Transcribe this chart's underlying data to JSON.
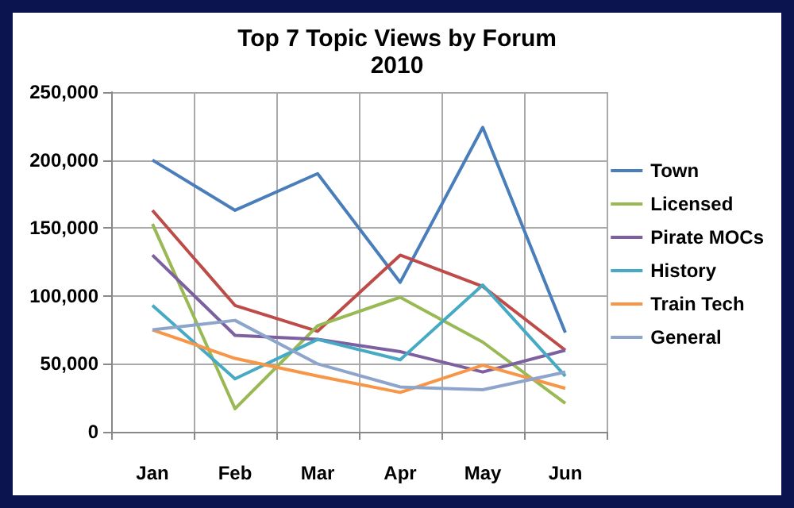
{
  "chart_data": {
    "type": "line",
    "title": "Top 7 Topic Views by Forum",
    "subtitle": "2010",
    "categories": [
      "Jan",
      "Feb",
      "Mar",
      "Apr",
      "May",
      "Jun"
    ],
    "series": [
      {
        "name": "Town",
        "color": "#4a7ebb",
        "values": [
          200000,
          163000,
          190000,
          110000,
          224000,
          73000
        ]
      },
      {
        "color": "#be4b48",
        "values": [
          163000,
          93000,
          74000,
          130000,
          107000,
          60000
        ]
      },
      {
        "name": "Licensed",
        "color": "#98b954",
        "values": [
          153000,
          17000,
          78000,
          99000,
          66000,
          21000
        ]
      },
      {
        "name": "Pirate MOCs",
        "color": "#7d60a0",
        "values": [
          130000,
          71000,
          68000,
          59000,
          44000,
          60000
        ]
      },
      {
        "name": "History",
        "color": "#46aac5",
        "values": [
          93000,
          39000,
          68000,
          53000,
          108000,
          41000
        ]
      },
      {
        "name": "Train Tech",
        "color": "#f79646",
        "values": [
          75000,
          54000,
          41000,
          29000,
          49000,
          32000
        ]
      },
      {
        "name": "General",
        "color": "#8ea5cb",
        "values": [
          75000,
          82000,
          50000,
          33000,
          31000,
          44000
        ]
      }
    ],
    "ylim": [
      0,
      250000
    ],
    "yticks": [
      {
        "value": 0,
        "label": "0"
      },
      {
        "value": 50000,
        "label": "50,000"
      },
      {
        "value": 100000,
        "label": "100,000"
      },
      {
        "value": 150000,
        "label": "150,000"
      },
      {
        "value": 200000,
        "label": "200,000"
      },
      {
        "value": 250000,
        "label": "250,000"
      }
    ],
    "grid": true,
    "legend": "right",
    "marker": "none",
    "line_style": "solid"
  }
}
